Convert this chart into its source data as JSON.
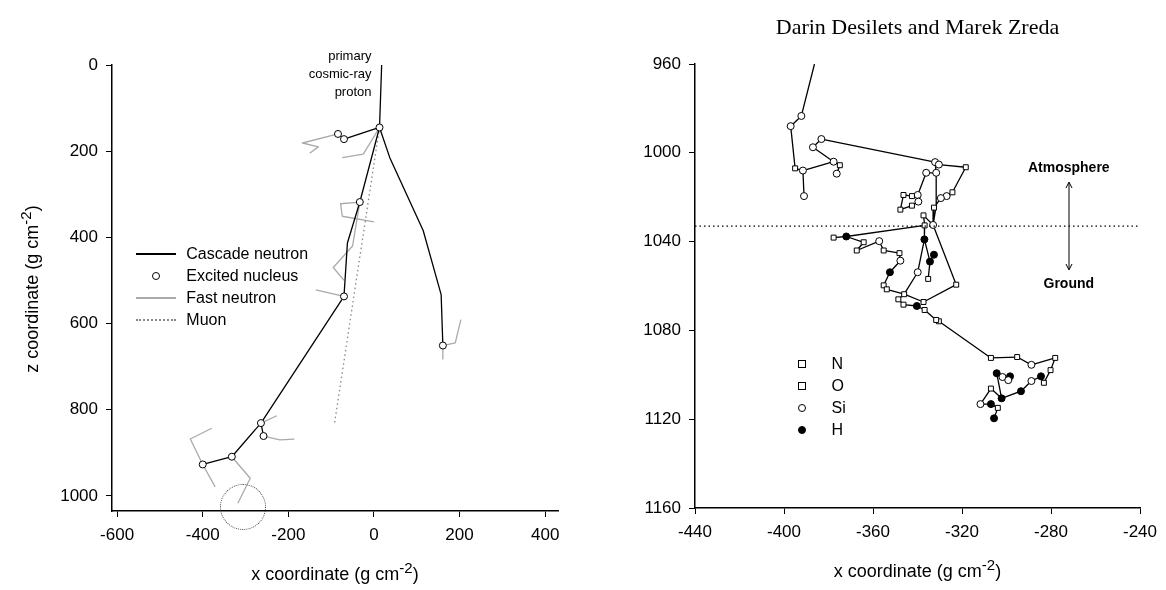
{
  "chart_data": [
    {
      "type": "line",
      "xlabel": "x coordinate (g cm$^{-2}$)",
      "ylabel": "z coordinate (g cm$^{-2}$)",
      "xlim": [
        -612,
        430
      ],
      "ylim": [
        1035,
        0
      ],
      "xticks": [
        -600,
        -400,
        -200,
        0,
        200,
        400
      ],
      "yticks": [
        0,
        200,
        400,
        600,
        800,
        1000
      ],
      "grid": false,
      "legend": "center left",
      "annotations": [
        {
          "text": "primary cosmic-ray proton",
          "x": 13,
          "y": 145
        }
      ],
      "series": [
        {
          "name": "Cascade neutron",
          "type": "line",
          "color": "#000000",
          "marker": "none",
          "line_style": "solid",
          "x": [
            18,
            13,
            null,
            13,
            37,
            115,
            157,
            161,
            null,
            13,
            -33,
            -62,
            -70,
            -264,
            -332,
            -400,
            null,
            13,
            -70,
            -84,
            null,
            -264,
            -258
          ],
          "values": [
            0,
            145,
            null,
            145,
            215,
            384,
            533,
            651,
            null,
            145,
            318,
            413,
            537,
            831,
            909,
            927,
            null,
            145,
            172,
            160,
            null,
            831,
            861
          ]
        },
        {
          "name": "Excited nucleus",
          "type": "scatter",
          "color": "#ffffff",
          "marker": "circle",
          "x": [
            13,
            -84,
            -70,
            -33,
            -70,
            -264,
            -258,
            -332,
            -400,
            161
          ],
          "values": [
            145,
            160,
            172,
            318,
            537,
            831,
            861,
            909,
            927,
            651
          ]
        },
        {
          "name": "Fast neutron",
          "type": "line",
          "color": "#aaaaaa",
          "marker": "none",
          "line_style": "solid",
          "x": [
            -84,
            -167,
            -130,
            -150,
            null,
            13,
            -25,
            -74,
            null,
            -33,
            -78,
            -74,
            0,
            null,
            -33,
            -50,
            -95,
            -70,
            null,
            -70,
            -136,
            null,
            161,
            190,
            203,
            null,
            161,
            161,
            null,
            -264,
            -227,
            null,
            -258,
            -220,
            -186,
            null,
            -400,
            -429,
            -379,
            null,
            -400,
            -371,
            null,
            -332,
            -289,
            -318
          ],
          "values": [
            160,
            181,
            190,
            205,
            null,
            145,
            207,
            215,
            null,
            318,
            322,
            351,
            364,
            null,
            318,
            420,
            470,
            500,
            null,
            537,
            522,
            null,
            651,
            645,
            591,
            null,
            651,
            682,
            null,
            831,
            814,
            null,
            861,
            870,
            868,
            null,
            927,
            868,
            843,
            null,
            927,
            979,
            null,
            909,
            959,
            1017
          ]
        },
        {
          "name": "Muon",
          "type": "line",
          "color": "#888888",
          "marker": "none",
          "line_style": "dotted",
          "x": [
            13,
            -92
          ],
          "values": [
            145,
            831
          ]
        }
      ]
    },
    {
      "type": "line",
      "title": "Darin Desilets and Marek Zreda",
      "xlabel": "x coordinate (g cm$^{-2}$)",
      "xlim": [
        -440,
        -240
      ],
      "ylim": [
        1160,
        960
      ],
      "xticks": [
        -440,
        -400,
        -360,
        -320,
        -280,
        -240
      ],
      "yticks": [
        960,
        1000,
        1040,
        1080,
        1120,
        1160
      ],
      "grid": false,
      "legend": "bottom left",
      "annotations": [
        "Atmosphere",
        "Ground"
      ],
      "ref_lines": [
        {
          "axis": "y",
          "value": 1033,
          "color": "#000000",
          "line_style": "dotted"
        }
      ],
      "series": [
        {
          "type": "line",
          "color": "#000000",
          "marker": "none",
          "line_style": "solid",
          "x": [
            -386.3,
            -392.2,
            -397,
            -395,
            -391.5,
            -391,
            null,
            -391.5,
            -377.7,
            -374.9,
            -376.3,
            null,
            -377.7,
            -387,
            -383.2,
            -332.1,
            -330.4,
            -318.3,
            -324.3,
            -326.9,
            -329.5,
            -332.6,
            -333,
            -322.6,
            -337.3,
            -346,
            -348.6,
            -346.3,
            -340.3,
            -336.8,
            -331.6,
            -330.4,
            -307,
            -295.2,
            -288.8,
            -278.1,
            -280.2,
            -283.2,
            -284.5,
            -288.8,
            -293.5,
            -302.2,
            -307,
            -311.7,
            -307,
            -303.9,
            -305.6,
            null,
            -302.2,
            -304.4,
            -301.8,
            -299.2,
            -298.4,
            null,
            -332.1,
            -331.6,
            -336.1,
            -339.9,
            -342.5,
            -346.3,
            -347.7,
            -342.5,
            -339.6,
            null,
            -331.6,
            -331.6,
            -333,
            null,
            -333,
            -337.3,
            -336.8,
            -372,
            -377.7,
            null,
            -372,
            -364.2,
            -367.3,
            -357.2,
            -355.2,
            -348.1,
            -347.7,
            -352.4,
            -355.2,
            -353.8,
            -346,
            null,
            -336.8,
            -336.9,
            -339.9,
            -346,
            null,
            -336.9,
            -334.4,
            -332.6,
            null,
            -334.4,
            -335.2
          ],
          "values": [
            960,
            983.4,
            988,
            1007,
            1008,
            1019.5,
            null,
            1008,
            1004,
            1005.6,
            1009.4,
            null,
            1004,
            997.5,
            993.8,
            1004.2,
            1005.3,
            1006.5,
            1017.8,
            1019.5,
            1020.4,
            1024.7,
            1032.5,
            1059.4,
            1067.2,
            1063.7,
            1066,
            1068.4,
            1069,
            1070.8,
            1075.3,
            1075.9,
            1092.4,
            1092,
            1095.5,
            1092.4,
            1097.9,
            1103.6,
            1100.7,
            1102.8,
            1107.4,
            1110.6,
            1106.2,
            1113.2,
            1113.2,
            1114.9,
            1119.6,
            null,
            1110.6,
            1099.3,
            1101,
            1102.4,
            1100.7,
            null,
            1004.2,
            1009,
            1009,
            1019,
            1019.5,
            1019,
            1025.6,
            1023.8,
            1022,
            null,
            1009,
            1024,
            1032.5,
            null,
            1032.5,
            1028.2,
            1032.7,
            1037.7,
            1038.2,
            null,
            1037.7,
            1040.3,
            1044,
            1039.8,
            1044,
            1045.2,
            1048.6,
            1053.8,
            1059.7,
            1061.5,
            1063.7,
            null,
            1032.7,
            1039,
            1053.8,
            1063.7,
            null,
            1039,
            1049,
            1045.9,
            null,
            1049,
            1056.8
          ]
        },
        {
          "name": "N",
          "type": "scatter",
          "color": "#ffffff",
          "marker": "square",
          "x": [
            -347.7,
            -342.5,
            -337.3,
            -336.8,
            -364.2,
            -367.3,
            -355.2,
            -348.1,
            -353.8,
            -346,
            -346.3,
            -336.8,
            -331.6,
            -322.6,
            -337.3,
            -335.2,
            -295.2,
            -283.2,
            -307,
            -303.9,
            -332.6
          ],
          "values": [
            1025.6,
            1023.8,
            1028.2,
            1032.7,
            1040.3,
            1044,
            1044,
            1045.2,
            1061.5,
            1063.7,
            1068.4,
            1070.8,
            1075.3,
            1059.4,
            1067.2,
            1056.8,
            1092,
            1103.6,
            1106.2,
            1114.9,
            1024.7
          ]
        },
        {
          "name": "O",
          "type": "scatter",
          "color": "#ffffff",
          "marker": "square",
          "x": [
            -395,
            -374.9,
            -324.3,
            -342.5,
            -346.3,
            -377.7,
            -355.2,
            -348.6,
            -330.4,
            -307,
            -278.1,
            -280.2,
            -318.3
          ],
          "values": [
            1007,
            1005.6,
            1017.8,
            1019.5,
            1019,
            1038.2,
            1059.7,
            1066,
            1075.9,
            1092.4,
            1092.4,
            1097.9,
            1006.5
          ]
        },
        {
          "name": "Si",
          "type": "scatter",
          "color": "#ffffff",
          "marker": "circle",
          "x": [
            -392.2,
            -397,
            -391.5,
            -391,
            -377.7,
            -376.3,
            -387,
            -383.2,
            -332.1,
            -330.4,
            -326.9,
            -329.5,
            -331.6,
            -336.1,
            -339.9,
            -339.6,
            -357.2,
            -347.7,
            -339.9,
            -288.8,
            -288.8,
            -311.7,
            -301.8,
            -299.2,
            -333
          ],
          "values": [
            983.4,
            988,
            1008,
            1019.5,
            1004,
            1009.4,
            997.5,
            993.8,
            1004.2,
            1005.3,
            1019.5,
            1020.4,
            1009,
            1009,
            1019,
            1022,
            1039.8,
            1048.6,
            1053.8,
            1095.5,
            1102.8,
            1113.2,
            1101,
            1102.4,
            1032.5
          ]
        },
        {
          "name": "H",
          "type": "scatter",
          "color": "#000000",
          "marker": "circle",
          "x": [
            -372,
            -352.4,
            -340.3,
            -336.9,
            -334.4,
            -332.6,
            -284.5,
            -293.5,
            -302.2,
            -307,
            -305.6,
            -304.4,
            -298.4
          ],
          "values": [
            1037.7,
            1053.8,
            1069,
            1039,
            1049,
            1045.9,
            1100.7,
            1107.4,
            1110.6,
            1113.2,
            1119.6,
            1099.3,
            1100.7
          ]
        }
      ]
    }
  ]
}
